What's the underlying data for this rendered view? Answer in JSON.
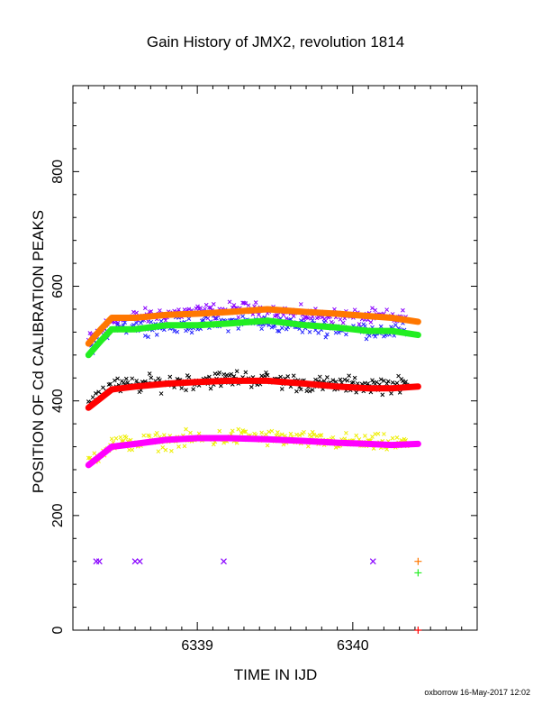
{
  "chart_data": {
    "type": "scatter",
    "title": "Gain History of JMX2, revolution 1814",
    "xlabel": "TIME IN IJD",
    "ylabel": "POSITION OF Cd CALIBRATION PEAKS",
    "credit": "oxborrow 16-May-2017 12:02",
    "xlim": [
      6338.2,
      6340.8
    ],
    "ylim": [
      0,
      950
    ],
    "xticks": [
      6339,
      6340
    ],
    "yticks": [
      0,
      200,
      400,
      600,
      800
    ],
    "grid": false,
    "scatter_series": [
      {
        "color": "#8800ff",
        "center": [
          [
            6338.3,
            505
          ],
          [
            6338.45,
            540
          ],
          [
            6338.8,
            552
          ],
          [
            6339.3,
            560
          ],
          [
            6339.8,
            548
          ],
          [
            6340.35,
            545
          ]
        ],
        "spread": 10
      },
      {
        "color": "#2222ff",
        "center": [
          [
            6338.3,
            492
          ],
          [
            6338.45,
            530
          ],
          [
            6338.8,
            530
          ],
          [
            6339.3,
            538
          ],
          [
            6339.8,
            528
          ],
          [
            6340.35,
            520
          ]
        ],
        "spread": 10
      },
      {
        "color": "#000000",
        "center": [
          [
            6338.3,
            400
          ],
          [
            6338.45,
            425
          ],
          [
            6338.8,
            432
          ],
          [
            6339.3,
            440
          ],
          [
            6339.8,
            428
          ],
          [
            6340.35,
            428
          ]
        ],
        "spread": 11
      },
      {
        "color": "#eeee00",
        "center": [
          [
            6338.3,
            295
          ],
          [
            6338.45,
            325
          ],
          [
            6338.8,
            330
          ],
          [
            6339.3,
            338
          ],
          [
            6339.8,
            330
          ],
          [
            6340.35,
            325
          ]
        ],
        "spread": 11
      }
    ],
    "fit_lines": [
      {
        "color": "#ff7700",
        "x": [
          6338.3,
          6338.38,
          6338.45,
          6338.6,
          6338.8,
          6339.0,
          6339.2,
          6339.45,
          6339.7,
          6339.9,
          6340.1,
          6340.25,
          6340.42
        ],
        "y": [
          500,
          525,
          545,
          545,
          550,
          552,
          555,
          560,
          555,
          552,
          548,
          545,
          538
        ]
      },
      {
        "color": "#22ee22",
        "x": [
          6338.3,
          6338.38,
          6338.45,
          6338.6,
          6338.8,
          6339.0,
          6339.2,
          6339.45,
          6339.7,
          6339.9,
          6340.1,
          6340.25,
          6340.42
        ],
        "y": [
          480,
          505,
          525,
          525,
          532,
          532,
          535,
          540,
          532,
          528,
          522,
          522,
          515
        ]
      },
      {
        "color": "#ff0000",
        "x": [
          6338.3,
          6338.38,
          6338.45,
          6338.6,
          6338.8,
          6339.0,
          6339.2,
          6339.45,
          6339.7,
          6339.9,
          6340.1,
          6340.25,
          6340.42
        ],
        "y": [
          388,
          405,
          420,
          425,
          430,
          433,
          435,
          435,
          430,
          425,
          422,
          422,
          425
        ]
      },
      {
        "color": "#ff00ff",
        "x": [
          6338.3,
          6338.38,
          6338.45,
          6338.6,
          6338.8,
          6339.0,
          6339.2,
          6339.45,
          6339.7,
          6339.9,
          6340.1,
          6340.25,
          6340.42
        ],
        "y": [
          288,
          305,
          320,
          325,
          332,
          335,
          335,
          333,
          330,
          327,
          325,
          323,
          325
        ]
      }
    ],
    "bottom_markers": [
      {
        "x": 6338.35,
        "y": 120,
        "color": "#8800ff",
        "symbol": "x"
      },
      {
        "x": 6338.37,
        "y": 120,
        "color": "#8800ff",
        "symbol": "x"
      },
      {
        "x": 6338.6,
        "y": 120,
        "color": "#8800ff",
        "symbol": "x"
      },
      {
        "x": 6338.63,
        "y": 120,
        "color": "#8800ff",
        "symbol": "x"
      },
      {
        "x": 6339.17,
        "y": 120,
        "color": "#8800ff",
        "symbol": "x"
      },
      {
        "x": 6340.13,
        "y": 120,
        "color": "#8800ff",
        "symbol": "x"
      },
      {
        "x": 6340.42,
        "y": 120,
        "color": "#ff7700",
        "symbol": "+"
      },
      {
        "x": 6340.42,
        "y": 100,
        "color": "#22ee22",
        "symbol": "+"
      },
      {
        "x": 6340.42,
        "y": 0,
        "color": "#ff0000",
        "symbol": "+"
      }
    ]
  }
}
